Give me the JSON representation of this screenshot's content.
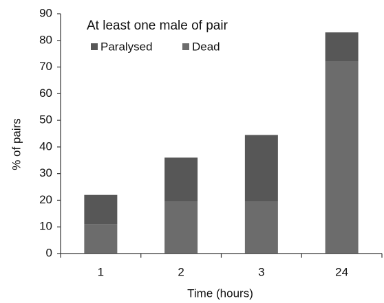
{
  "chart_data": {
    "type": "stacked_bar",
    "title": "At least one male of pair",
    "x_label": "Time (hours)",
    "y_label": "% of pairs",
    "categories": [
      "1",
      "2",
      "3",
      "24"
    ],
    "series": [
      {
        "name": "Paralysed",
        "color": "#575757",
        "values": [
          11,
          16.5,
          25,
          11
        ]
      },
      {
        "name": "Dead",
        "color": "#6c6c6c",
        "values": [
          11,
          19.5,
          19.5,
          72
        ]
      }
    ],
    "ylim": [
      0,
      90
    ],
    "yticks": [
      0,
      10,
      20,
      30,
      40,
      50,
      60,
      70,
      80,
      90
    ]
  }
}
